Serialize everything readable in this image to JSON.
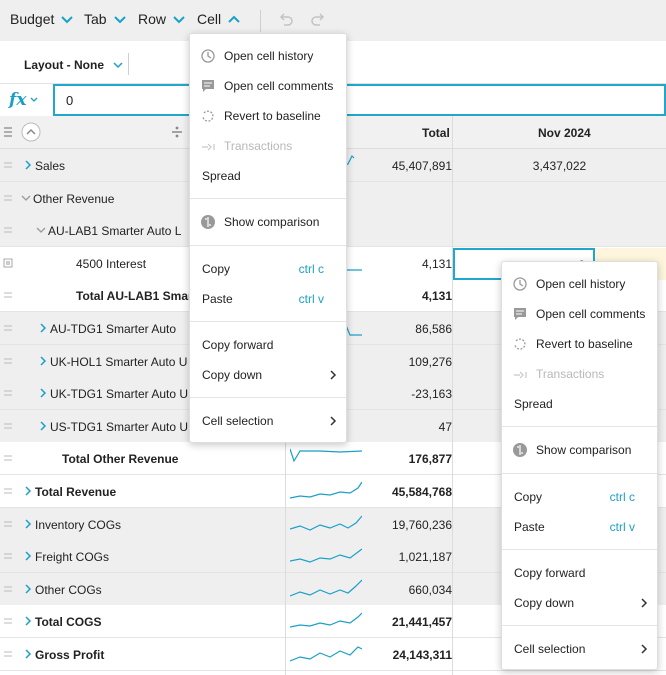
{
  "menubar": {
    "items": [
      "Budget",
      "Tab",
      "Row",
      "Cell"
    ],
    "undo_icon": "undo-icon",
    "redo_icon": "redo-icon"
  },
  "toolbar": {
    "layout_label": "Layout - None"
  },
  "formula": {
    "fx_label": "fx",
    "value": "0"
  },
  "grid": {
    "columns": {
      "total": "Total",
      "period": "Nov 2024"
    },
    "rows": [
      {
        "label": "Sales",
        "total": "45,407,891",
        "nov": "3,437,022"
      },
      {
        "label": "Other Revenue",
        "total": "",
        "nov": ""
      },
      {
        "label": "AU-LAB1  Smarter Auto L",
        "total": "",
        "nov": ""
      },
      {
        "label": "4500  Interest",
        "total": "4,131",
        "nov": "0"
      },
      {
        "label": "Total AU-LAB1 Smarter",
        "total": "4,131",
        "nov": ""
      },
      {
        "label": "AU-TDG1  Smarter Auto",
        "total": "86,586",
        "nov": ""
      },
      {
        "label": "UK-HOL1  Smarter Auto U",
        "total": "109,276",
        "nov": ""
      },
      {
        "label": "UK-TDG1  Smarter Auto U",
        "total": "-23,163",
        "nov": ""
      },
      {
        "label": "US-TDG1  Smarter Auto U",
        "total": "47",
        "nov": ""
      },
      {
        "label": "Total Other Revenue",
        "total": "176,877",
        "nov": ""
      },
      {
        "label": "Total Revenue",
        "total": "45,584,768",
        "nov": ""
      },
      {
        "label": "Inventory COGs",
        "total": "19,760,236",
        "nov": ""
      },
      {
        "label": "Freight COGs",
        "total": "1,021,187",
        "nov": ""
      },
      {
        "label": "Other COGs",
        "total": "660,034",
        "nov": ""
      },
      {
        "label": "Total COGS",
        "total": "21,441,457",
        "nov": ""
      },
      {
        "label": "Gross Profit",
        "total": "24,143,311",
        "nov": ""
      }
    ]
  },
  "context_menu": {
    "items": {
      "open_history": "Open cell history",
      "open_comments": "Open cell comments",
      "revert": "Revert to baseline",
      "transactions": "Transactions",
      "spread": "Spread",
      "show_comparison": "Show comparison",
      "copy": "Copy",
      "copy_kbd": "ctrl c",
      "paste": "Paste",
      "paste_kbd": "ctrl v",
      "copy_forward": "Copy forward",
      "copy_down": "Copy down",
      "cell_selection": "Cell selection"
    }
  },
  "colors": {
    "accent": "#1aa0c8",
    "selection_border": "#22a7cc",
    "shaded_row": "#efefef"
  }
}
